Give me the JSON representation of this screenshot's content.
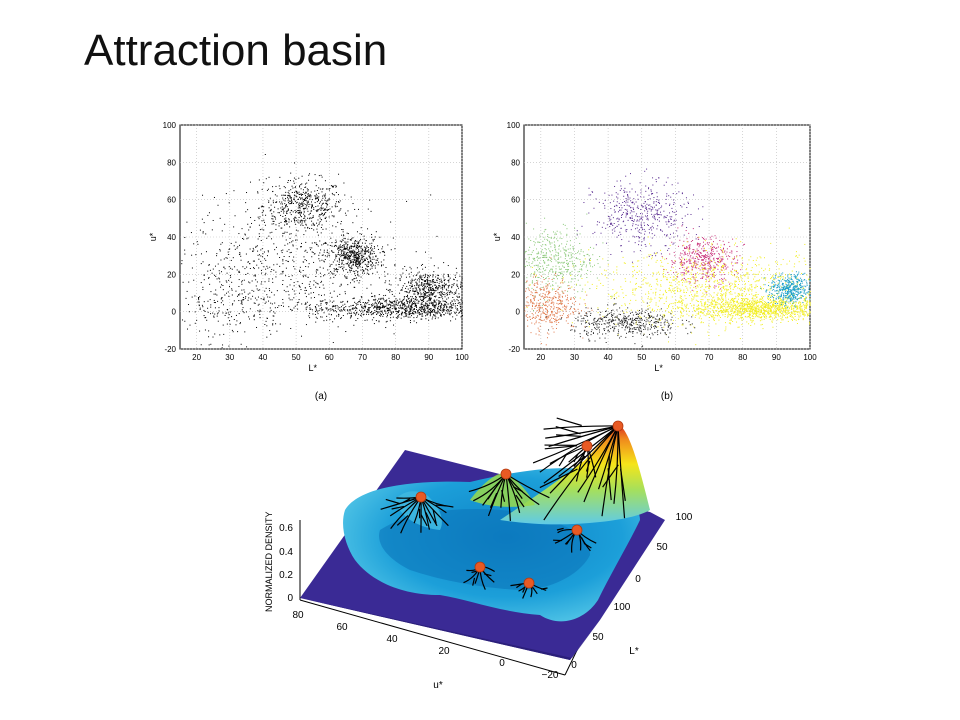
{
  "slide": {
    "title": "Attraction basin"
  },
  "chart_data": [
    {
      "type": "scatter",
      "panel_label": "(a)",
      "xlabel": "L*",
      "ylabel": "u*",
      "xlim": [
        15,
        100
      ],
      "ylim": [
        -20,
        100
      ],
      "xticks": [
        20,
        30,
        40,
        50,
        60,
        70,
        80,
        90,
        100
      ],
      "yticks": [
        -20,
        0,
        20,
        40,
        60,
        80,
        100
      ],
      "grid": true,
      "series": [
        {
          "color": "#000000",
          "clusters": [
            {
              "center": [
                52,
                57
              ],
              "spread": [
                6,
                7
              ],
              "density": "high"
            },
            {
              "center": [
                67,
                30
              ],
              "spread": [
                4,
                5
              ],
              "density": "high"
            },
            {
              "center": [
                90,
                12
              ],
              "spread": [
                5,
                5
              ],
              "density": "high"
            },
            {
              "center": [
                82,
                2
              ],
              "spread": [
                14,
                3
              ],
              "density": "very high"
            },
            {
              "center": [
                48,
                25
              ],
              "spread": [
                18,
                18
              ],
              "density": "medium"
            },
            {
              "center": [
                30,
                5
              ],
              "spread": [
                10,
                10
              ],
              "density": "low"
            }
          ]
        }
      ]
    },
    {
      "type": "scatter",
      "panel_label": "(b)",
      "xlabel": "L*",
      "ylabel": "u*",
      "xlim": [
        15,
        100
      ],
      "ylim": [
        -20,
        100
      ],
      "xticks": [
        20,
        30,
        40,
        50,
        60,
        70,
        80,
        90,
        100
      ],
      "yticks": [
        -20,
        0,
        20,
        40,
        60,
        80,
        100
      ],
      "grid": true,
      "series": [
        {
          "color": "#5a2d91",
          "center": [
            50,
            52
          ],
          "spread": [
            7,
            9
          ]
        },
        {
          "color": "#c8327a",
          "center": [
            68,
            28
          ],
          "spread": [
            5,
            6
          ]
        },
        {
          "color": "#f2ee1e",
          "center": [
            72,
            12
          ],
          "spread": [
            18,
            10
          ]
        },
        {
          "color": "#f2ee1e",
          "center": [
            85,
            2
          ],
          "spread": [
            10,
            3
          ]
        },
        {
          "color": "#1ea0c8",
          "center": [
            94,
            12
          ],
          "spread": [
            3,
            4
          ]
        },
        {
          "color": "#8ac878",
          "center": [
            24,
            28
          ],
          "spread": [
            6,
            9
          ]
        },
        {
          "color": "#e0784a",
          "center": [
            21,
            4
          ],
          "spread": [
            5,
            7
          ]
        },
        {
          "color": "#222222",
          "center": [
            45,
            -6
          ],
          "spread": [
            8,
            4
          ]
        }
      ]
    },
    {
      "type": "surface",
      "zlabel": "NORMALIZED DENSITY",
      "xlabel": "u*",
      "ylabel": "L*",
      "zticks": [
        "0",
        "0.2",
        "0.4",
        "0.6"
      ],
      "u_ticks": [
        "80",
        "60",
        "40",
        "20",
        "0",
        "−20"
      ],
      "l_ticks": [
        "0",
        "50",
        "100"
      ],
      "v_ticks": [
        "0",
        "50",
        "100"
      ],
      "modes": 7
    }
  ]
}
